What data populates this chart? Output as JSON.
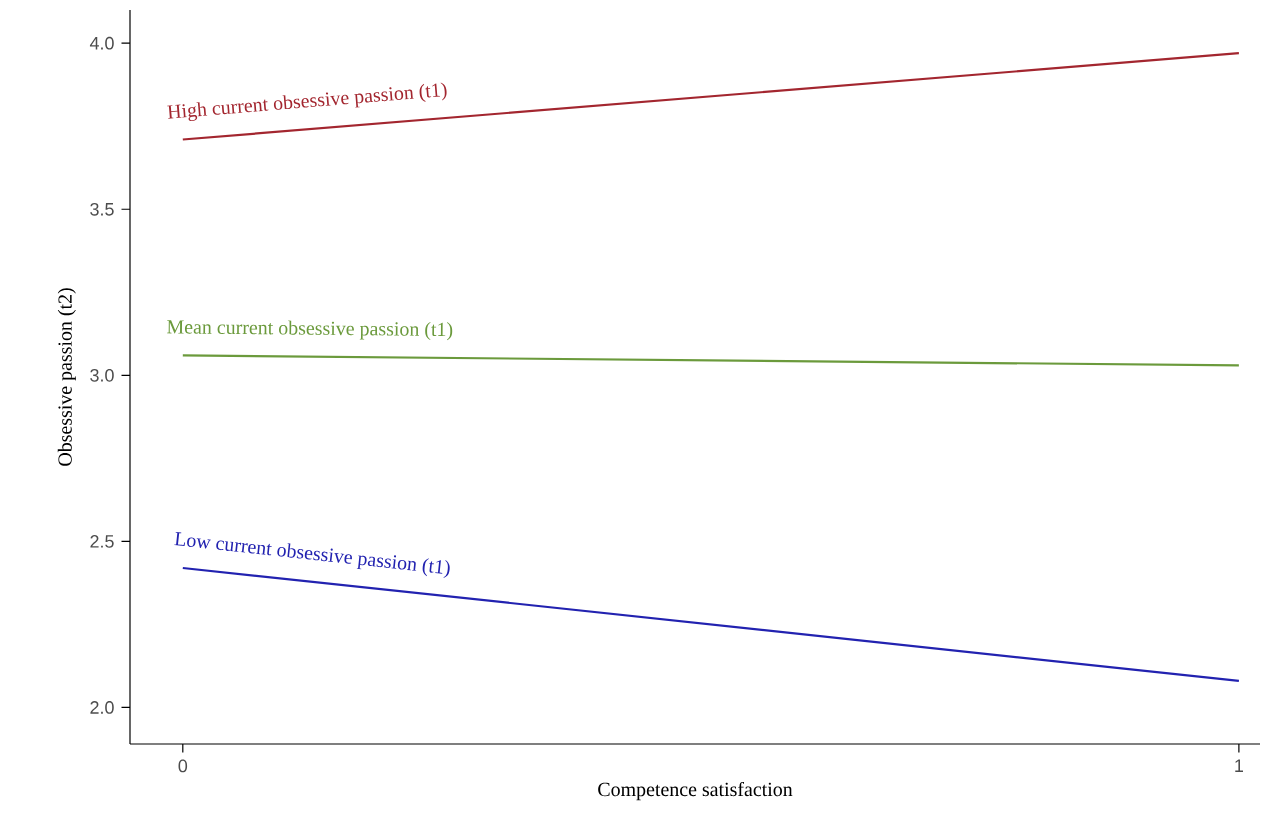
{
  "chart_data": {
    "type": "line",
    "xlabel": "Competence satisfaction",
    "ylabel": "Obsessive passion (t2)",
    "x": [
      0,
      1
    ],
    "series": [
      {
        "name": "High current obsessive passion (t1)",
        "color": "#a3262f",
        "values": [
          3.71,
          3.97
        ]
      },
      {
        "name": "Mean current obsessive passion (t1)",
        "color": "#6b9a3c",
        "values": [
          3.06,
          3.03
        ]
      },
      {
        "name": "Low current obsessive passion (t1)",
        "color": "#2222b0",
        "values": [
          2.42,
          2.08
        ]
      }
    ],
    "xlim": [
      -0.05,
      1.02
    ],
    "ylim": [
      1.89,
      4.1
    ],
    "xticks": [
      0,
      1
    ],
    "yticks": [
      {
        "value": 2,
        "label": "2.0"
      },
      {
        "value": 2.5,
        "label": "2.5"
      },
      {
        "value": 3,
        "label": "3.0"
      },
      {
        "value": 3.5,
        "label": "3.5"
      },
      {
        "value": 4,
        "label": "4.0"
      }
    ]
  }
}
